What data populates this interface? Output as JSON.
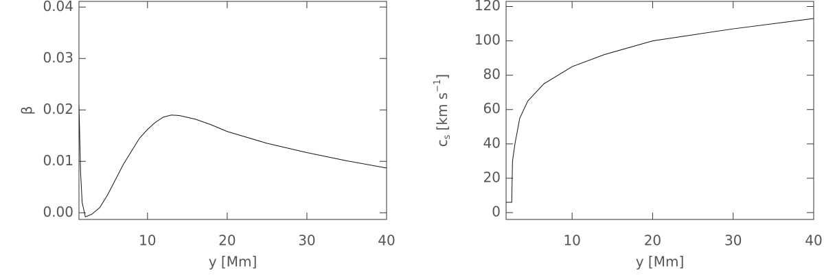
{
  "chart_data": [
    {
      "type": "line",
      "xlabel": "y [Mm]",
      "ylabel": "β",
      "x": [
        1.4,
        1.6,
        1.8,
        2.2,
        3,
        4,
        5,
        6,
        7,
        8,
        9,
        10,
        11,
        12,
        13,
        14,
        16,
        18,
        20,
        25,
        30,
        35,
        40
      ],
      "series": [
        {
          "color": "#111111",
          "values": [
            0.021,
            0.008,
            0.002,
            -0.0008,
            -0.0003,
            0.001,
            0.0035,
            0.0065,
            0.0095,
            0.012,
            0.0145,
            0.0162,
            0.0176,
            0.0186,
            0.019,
            0.0189,
            0.0182,
            0.0171,
            0.0158,
            0.0135,
            0.0117,
            0.0101,
            0.0087
          ]
        }
      ],
      "xlim": [
        1.4,
        40
      ],
      "ylim": [
        -0.0013,
        0.0411
      ],
      "xticks": [
        10,
        20,
        30,
        40
      ],
      "yticks": [
        {
          "value": 0,
          "label": "0.00"
        },
        {
          "value": 0.01,
          "label": "0.01"
        },
        {
          "value": 0.02,
          "label": "0.02"
        },
        {
          "value": 0.03,
          "label": "0.03"
        },
        {
          "value": 0.04,
          "label": "0.04"
        }
      ]
    },
    {
      "type": "line",
      "xlabel": "y [Mm]",
      "ylabel": "c",
      "ylabel_sub": "s",
      "ylabel_unit": "[km s",
      "ylabel_sup": "−1",
      "ylabel_end": "]",
      "x": [
        1.8,
        2.5,
        2.6,
        2.9,
        3.5,
        4.5,
        6.5,
        10,
        14,
        20,
        30,
        40
      ],
      "series": [
        {
          "color": "#111111",
          "values": [
            6,
            6,
            30,
            40,
            55,
            65,
            75,
            85,
            92,
            100,
            107,
            113
          ]
        }
      ],
      "xlim": [
        1.8,
        40
      ],
      "ylim": [
        -4,
        123
      ],
      "xticks": [
        10,
        20,
        30,
        40
      ],
      "yticks": [
        0,
        20,
        40,
        60,
        80,
        100,
        120
      ]
    }
  ]
}
